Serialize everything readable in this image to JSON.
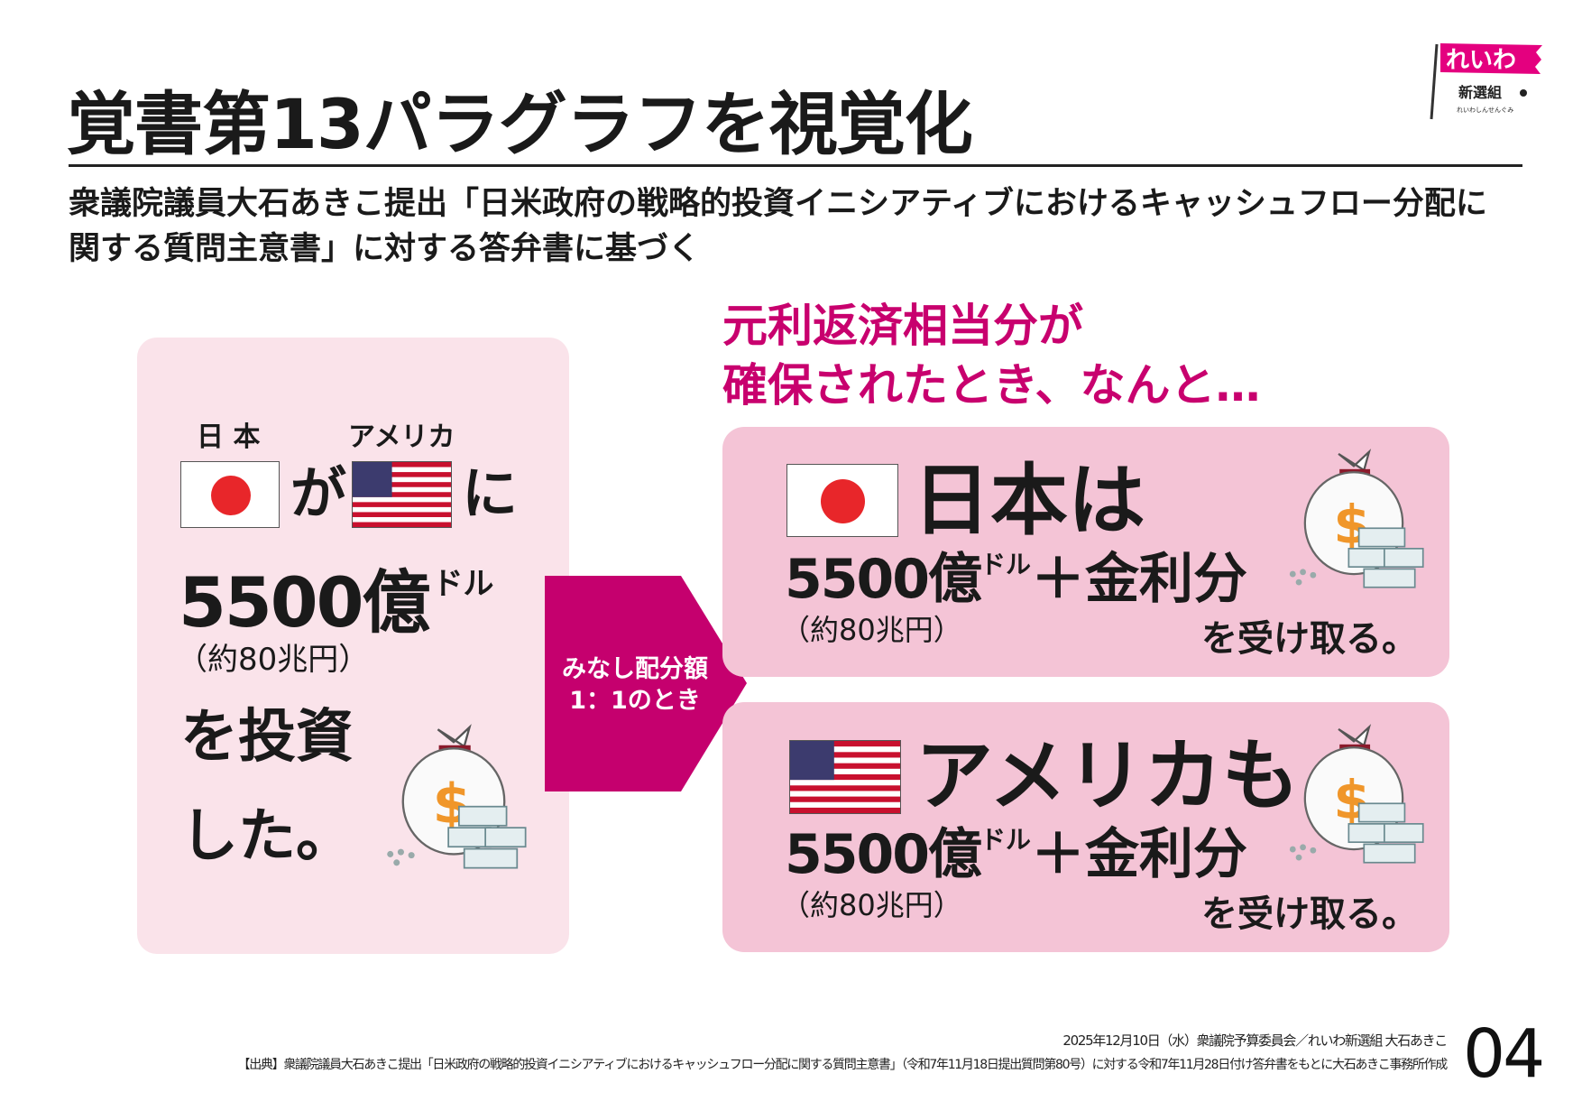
{
  "header": {
    "title": "覚書第13パラグラフを視覚化",
    "subtitle_line1": "衆議院議員大石あきこ提出「日米政府の戦略的投資イニシアティブにおけるキャッシュフロー分配に",
    "subtitle_line2": "関する質問主意書」に対する答弁書に基づく",
    "logo": {
      "main": "れいわ",
      "sub": "新選組",
      "reading": "れいわしんせんぐみ"
    }
  },
  "left_panel": {
    "japan_label": "日 本",
    "america_label": "アメリカ",
    "ga": "が",
    "ni": "に",
    "amount": "5500億",
    "unit": "ドル",
    "yen": "（約80兆円）",
    "line3": "を投資",
    "line4": "した。"
  },
  "arrow": {
    "line1": "みなし配分額",
    "line2": "1：1のとき",
    "color": "#c5006e"
  },
  "right_heading": {
    "line1": "元利返済相当分が",
    "line2": "確保されたとき、なんと…"
  },
  "results": [
    {
      "subject": "日本は",
      "amount": "5500億",
      "unit": "ドル",
      "plus": "＋金利分",
      "yen": "（約80兆円）",
      "receive": "を受け取る。",
      "flag": "japan"
    },
    {
      "subject": "アメリカも",
      "amount": "5500億",
      "unit": "ドル",
      "plus": "＋金利分",
      "yen": "（約80兆円）",
      "receive": "を受け取る。",
      "flag": "usa"
    }
  ],
  "footer": {
    "date_line": "2025年12月10日（水）衆議院予算委員会／れいわ新選組 大石あきこ",
    "source_line": "【出典】衆議院議員大石あきこ提出「日米政府の戦略的投資イニシアティブにおけるキャッシュフロー分配に関する質問主意書」（令和7年11月18日提出質問第80号）に対する令和7年11月28日付け答弁書をもとに大石あきこ事務所作成",
    "page_number": "04"
  },
  "colors": {
    "accent": "#c5006e",
    "left_bg": "#fae3ea",
    "right_bg": "#f4c4d6",
    "japan_red": "#e8262a"
  }
}
